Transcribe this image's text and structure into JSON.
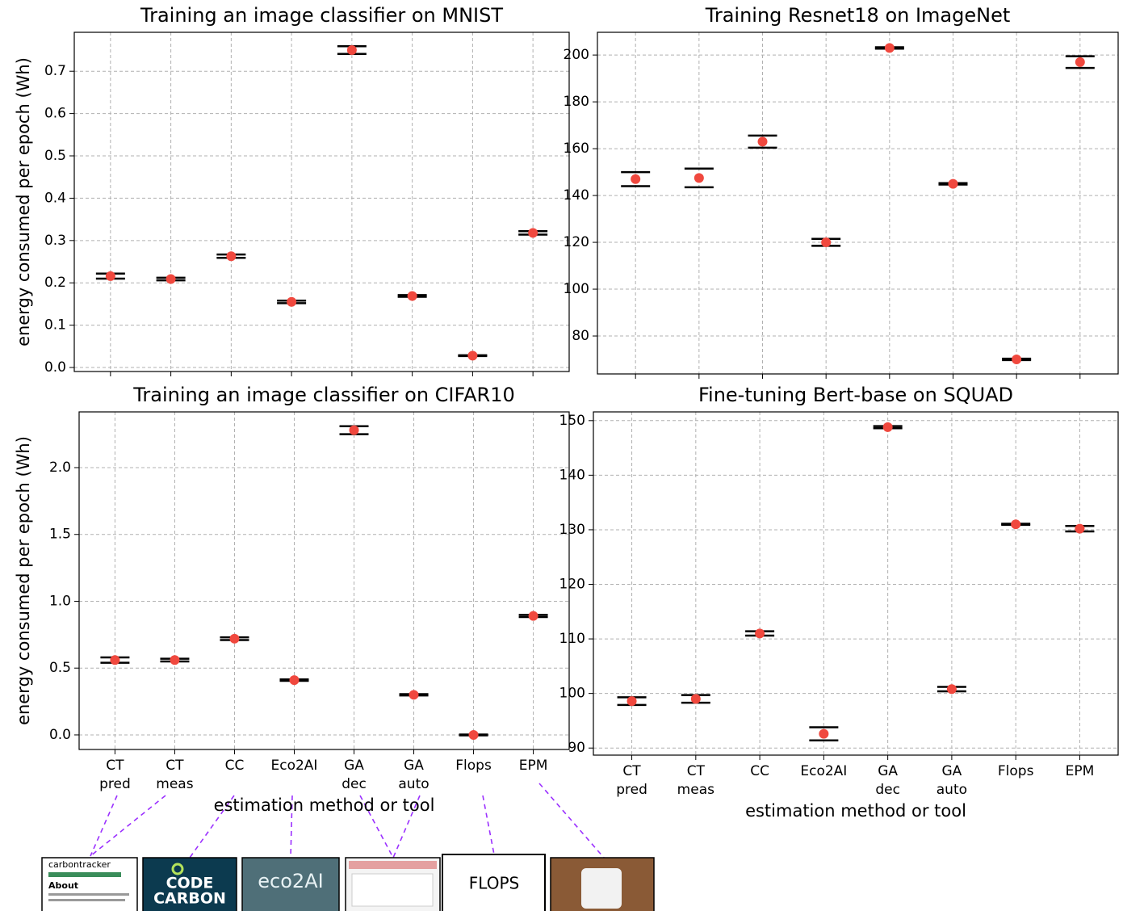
{
  "chart_data": [
    {
      "type": "errorbar",
      "title": "Training an image classifier on MNIST",
      "ylabel": "energy consumed per epoch (Wh)",
      "values": [
        0.216,
        0.209,
        0.263,
        0.155,
        0.75,
        0.169,
        0.028,
        0.318
      ],
      "errors": [
        0.006,
        0.003,
        0.004,
        0.003,
        0.009,
        0.002,
        0.001,
        0.004
      ],
      "color": "#f0483e",
      "error_color": "#000000",
      "ylim": [
        -0.0095,
        0.792
      ],
      "yticks": [
        0.0,
        0.1,
        0.2,
        0.3,
        0.4,
        0.5,
        0.6,
        0.7
      ],
      "grid": true
    },
    {
      "type": "errorbar",
      "title": "Training Resnet18 on ImageNet",
      "values": [
        147,
        147.5,
        163,
        120,
        203,
        145,
        70,
        197
      ],
      "errors": [
        3,
        4,
        2.6,
        1.5,
        0.3,
        0.3,
        0.3,
        2.5
      ],
      "color": "#f0483e",
      "error_color": "#000000",
      "ylim": [
        63.8,
        209.7
      ],
      "yticks": [
        80,
        100,
        120,
        140,
        160,
        180,
        200
      ],
      "grid": true
    },
    {
      "type": "errorbar",
      "title": "Training an image classifier on CIFAR10",
      "ylabel": "energy consumed per epoch (Wh)",
      "xlabel": "estimation method or tool",
      "categories": [
        "CT pred",
        "CT meas",
        "CC",
        "Eco2AI",
        "GA dec",
        "GA auto",
        "Flops",
        "EPM"
      ],
      "values": [
        0.56,
        0.56,
        0.72,
        0.41,
        2.28,
        0.3,
        0.0,
        0.89
      ],
      "errors": [
        0.02,
        0.01,
        0.01,
        0.005,
        0.03,
        0.005,
        0.003,
        0.008
      ],
      "color": "#f0483e",
      "error_color": "#000000",
      "ylim": [
        -0.109,
        2.417
      ],
      "yticks": [
        0.0,
        0.5,
        1.0,
        1.5,
        2.0
      ],
      "grid": true
    },
    {
      "type": "errorbar",
      "title": "Fine-tuning Bert-base on SQUAD",
      "xlabel": "estimation method or tool",
      "categories": [
        "CT pred",
        "CT meas",
        "CC",
        "Eco2AI",
        "GA dec",
        "GA auto",
        "Flops",
        "EPM"
      ],
      "values": [
        98.6,
        99,
        111,
        92.6,
        148.8,
        100.8,
        131,
        130.2
      ],
      "errors": [
        0.7,
        0.7,
        0.4,
        1.2,
        0.2,
        0.4,
        0.1,
        0.5
      ],
      "color": "#f0483e",
      "error_color": "#000000",
      "ylim": [
        88.7,
        151.6
      ],
      "yticks": [
        90,
        100,
        110,
        120,
        130,
        140,
        150
      ],
      "grid": true
    }
  ],
  "thumbnails": {
    "carbontracker": {
      "title": "carbontracker",
      "heading": "About"
    },
    "codecarbon": [
      "CODE",
      "CARBON"
    ],
    "eco2ai": "eco2AI",
    "flops": "FLOPS"
  }
}
